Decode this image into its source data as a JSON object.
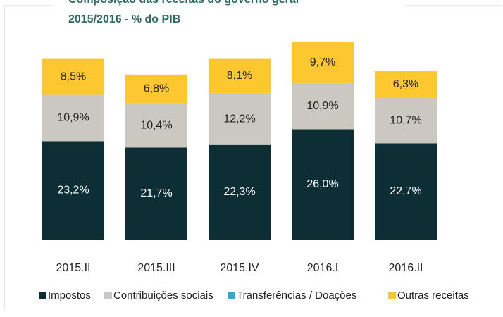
{
  "chart_data": {
    "type": "stacked_bar",
    "title": "Composição das receitas do governo geral",
    "subtitle": "2015/2016 - % do PIB",
    "categories": [
      "2015.II",
      "2015.III",
      "2015.IV",
      "2016.I",
      "2016.II"
    ],
    "series": [
      {
        "name": "Impostos",
        "color": "#0d2e35",
        "values": [
          23.2,
          21.7,
          22.3,
          26.0,
          22.7
        ],
        "value_labels": [
          "23,2%",
          "21,7%",
          "22,3%",
          "26,0%",
          "22,7%"
        ]
      },
      {
        "name": "Contribuições sociais",
        "color": "#cbc8c2",
        "values": [
          10.9,
          10.4,
          12.2,
          10.9,
          10.7
        ],
        "value_labels": [
          "10,9%",
          "10,4%",
          "12,2%",
          "10,9%",
          "10,7%"
        ]
      },
      {
        "name": "Transferências / Doações",
        "color": "#35a9c9",
        "values": [
          0,
          0,
          0,
          0,
          0
        ]
      },
      {
        "name": "Outras receitas",
        "color": "#fdc82f",
        "values": [
          8.5,
          6.8,
          8.1,
          9.7,
          6.3
        ],
        "value_labels": [
          "8,5%",
          "6,8%",
          "8,1%",
          "9,7%",
          "6,3%"
        ]
      }
    ],
    "legend": "bottom"
  }
}
